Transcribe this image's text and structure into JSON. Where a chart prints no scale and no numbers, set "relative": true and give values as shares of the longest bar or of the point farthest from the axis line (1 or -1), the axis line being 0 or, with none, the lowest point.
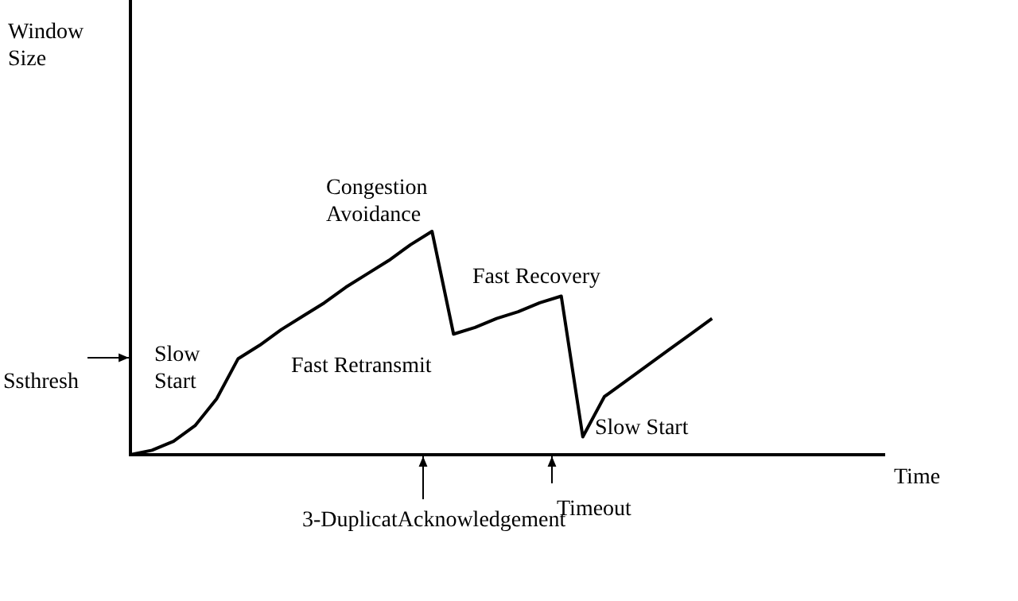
{
  "chart_data": {
    "type": "line",
    "relative": true,
    "xlabel": "Time",
    "categories": [
      null,
      null,
      null,
      null,
      null,
      null,
      null,
      null,
      null,
      null,
      null,
      null,
      null,
      null,
      null,
      null,
      null,
      null,
      null,
      null,
      null,
      null,
      null,
      null,
      null,
      null,
      null,
      null,
      null,
      null,
      null,
      null,
      null,
      null,
      null,
      null
    ],
    "series": [
      {
        "color": "#000000",
        "values": [
          0,
          0.02,
          0.06,
          0.13,
          0.25,
          0.43,
          0.49,
          0.56,
          0.62,
          0.68,
          0.75,
          0.81,
          0.87,
          0.94,
          1,
          0.54,
          0.57,
          0.61,
          0.64,
          0.68,
          0.71,
          0.08,
          0.26,
          0.33,
          0.4,
          0.47,
          0.54,
          0.61,
          null,
          null,
          null,
          null,
          null,
          null,
          null,
          null
        ]
      }
    ],
    "annotations": [
      "Slow Start",
      "Congestion Avoidance",
      "Fast Retransmit",
      "Fast Recovery",
      "Slow Start",
      "Ssthresh",
      "3-DuplicatAcknowledgement",
      "Timeout",
      "Window Size"
    ],
    "legend": false,
    "marker": "none",
    "line_style": "solid",
    "grid": false
  }
}
